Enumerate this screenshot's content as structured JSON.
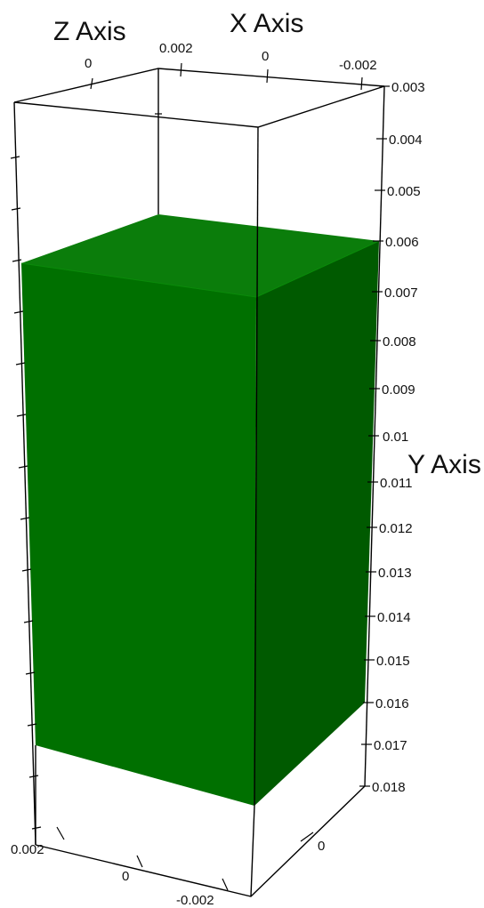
{
  "axes": {
    "x": {
      "title": "X Axis",
      "top_ticks": [
        "0.002",
        "0",
        "-0.002"
      ],
      "bottom_ticks": [
        "0"
      ]
    },
    "y": {
      "title": "Y Axis",
      "ticks": [
        "0.003",
        "0.004",
        "0.005",
        "0.006",
        "0.007",
        "0.008",
        "0.009",
        "0.01",
        "0.011",
        "0.012",
        "0.013",
        "0.014",
        "0.015",
        "0.016",
        "0.017",
        "0.018"
      ]
    },
    "z": {
      "title": "Z Axis",
      "top_ticks": [
        "0"
      ],
      "bottom_ticks": [
        "0.002",
        "0",
        "-0.002"
      ]
    }
  },
  "solid": {
    "top_color": "#0b7d0b",
    "front_color": "#007000",
    "right_color": "#005a00"
  }
}
